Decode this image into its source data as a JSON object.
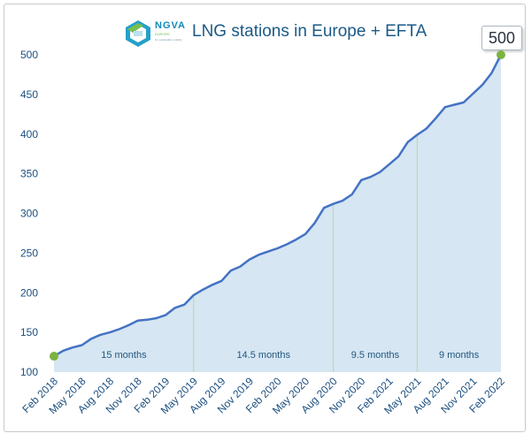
{
  "header": {
    "logo_text": "NGVA",
    "logo_sub": "EUROPE",
    "logo_sub2": "for sustainable mobility",
    "title": "LNG stations in Europe + EFTA",
    "callout_value": "500"
  },
  "colors": {
    "line": "#4472c4",
    "fill": "#d6e6f2",
    "marker": "#7cb342",
    "divider": "#b5d7a8",
    "axis_text": "#1b4f80"
  },
  "chart_data": {
    "type": "area",
    "title": "LNG stations in Europe + EFTA",
    "xlabel": "",
    "ylabel": "",
    "ylim": [
      100,
      500
    ],
    "yticks": [
      100,
      150,
      200,
      250,
      300,
      350,
      400,
      450,
      500
    ],
    "grid": false,
    "xticks": [
      "Feb 2018",
      "May 2018",
      "Aug 2018",
      "Nov 2018",
      "Feb 2019",
      "May 2019",
      "Aug 2019",
      "Nov 2019",
      "Feb 2020",
      "May 2020",
      "Aug 2020",
      "Nov 2020",
      "Feb 2021",
      "May 2021",
      "Aug 2021",
      "Nov 2021",
      "Feb 2022"
    ],
    "x": [
      "2018-02",
      "2018-03",
      "2018-04",
      "2018-05",
      "2018-06",
      "2018-07",
      "2018-08",
      "2018-09",
      "2018-10",
      "2018-11",
      "2018-12",
      "2019-01",
      "2019-02",
      "2019-03",
      "2019-04",
      "2019-05",
      "2019-06",
      "2019-07",
      "2019-08",
      "2019-09",
      "2019-10",
      "2019-11",
      "2019-12",
      "2020-01",
      "2020-02",
      "2020-03",
      "2020-04",
      "2020-05",
      "2020-06",
      "2020-07",
      "2020-08",
      "2020-09",
      "2020-10",
      "2020-11",
      "2020-12",
      "2021-01",
      "2021-02",
      "2021-03",
      "2021-04",
      "2021-05",
      "2021-06",
      "2021-07",
      "2021-08",
      "2021-09",
      "2021-10",
      "2021-11",
      "2021-12",
      "2022-01",
      "2022-02"
    ],
    "series": [
      {
        "values": [
          120,
          127,
          131,
          134,
          142,
          147,
          150,
          154,
          159,
          165,
          166,
          168,
          172,
          181,
          185,
          197,
          204,
          210,
          215,
          228,
          233,
          242,
          248,
          252,
          256,
          261,
          267,
          274,
          288,
          307,
          312,
          316,
          324,
          342,
          346,
          352,
          362,
          372,
          390,
          399,
          407,
          420,
          434,
          437,
          440,
          451,
          462,
          477,
          500
        ]
      }
    ],
    "markers": [
      {
        "x": "2018-02",
        "y": 120
      },
      {
        "x": "2022-02",
        "y": 500
      }
    ],
    "dividers": [
      "2019-05",
      "2020-08",
      "2021-05"
    ],
    "periods": [
      {
        "label": "15 months",
        "from": "2018-02",
        "to": "2019-05"
      },
      {
        "label": "14.5 months",
        "from": "2019-05",
        "to": "2020-08"
      },
      {
        "label": "9.5 months",
        "from": "2020-08",
        "to": "2021-05"
      },
      {
        "label": "9 months",
        "from": "2021-05",
        "to": "2022-02"
      }
    ]
  }
}
